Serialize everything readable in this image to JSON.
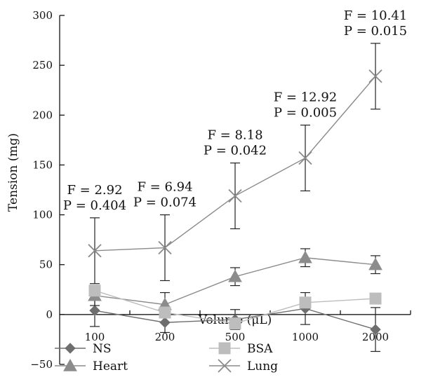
{
  "chart_data": {
    "type": "line",
    "title": "",
    "xlabel": "Volume (μL)",
    "ylabel": "Tension (mg)",
    "categories": [
      "100",
      "200",
      "500",
      "1000",
      "2000"
    ],
    "y_ticks": [
      "300",
      "250",
      "200",
      "150",
      "100",
      "50",
      "0",
      "−50"
    ],
    "ylim": [
      -50,
      300
    ],
    "grid": false,
    "legend_position": "bottom",
    "series": [
      {
        "name": "NS",
        "marker": "diamond",
        "color": "#6e6e6e",
        "values": [
          4,
          -8,
          -5,
          6,
          -15
        ],
        "error": [
          16,
          10,
          10,
          16,
          22
        ]
      },
      {
        "name": "Heart",
        "marker": "triangle",
        "color": "#8c8c8c",
        "values": [
          19,
          10,
          38,
          57,
          50
        ],
        "error": [
          10,
          12,
          9,
          9,
          9
        ]
      },
      {
        "name": "BSA",
        "marker": "square",
        "color": "#bdbdbd",
        "values": [
          24,
          2,
          -9,
          12,
          16
        ],
        "error": [
          0,
          0,
          0,
          0,
          0
        ]
      },
      {
        "name": "Lung",
        "marker": "x",
        "color": "#8a8a8a",
        "values": [
          64,
          67,
          119,
          157,
          239
        ],
        "error": [
          33,
          33,
          33,
          33,
          33
        ]
      }
    ],
    "annotations": [
      {
        "category": "100",
        "f_label": "F = 2.92",
        "p_label": "P = 0.404"
      },
      {
        "category": "200",
        "f_label": "F = 6.94",
        "p_label": "P = 0.074"
      },
      {
        "category": "500",
        "f_label": "F = 8.18",
        "p_label": "P = 0.042"
      },
      {
        "category": "1000",
        "f_label": "F = 12.92",
        "p_label": "P = 0.005"
      },
      {
        "category": "2000",
        "f_label": "F = 10.41",
        "p_label": "P = 0.015"
      }
    ],
    "legend": [
      {
        "name": "NS",
        "marker": "diamond"
      },
      {
        "name": "Heart",
        "marker": "triangle"
      },
      {
        "name": "BSA",
        "marker": "square"
      },
      {
        "name": "Lung",
        "marker": "x"
      }
    ]
  }
}
